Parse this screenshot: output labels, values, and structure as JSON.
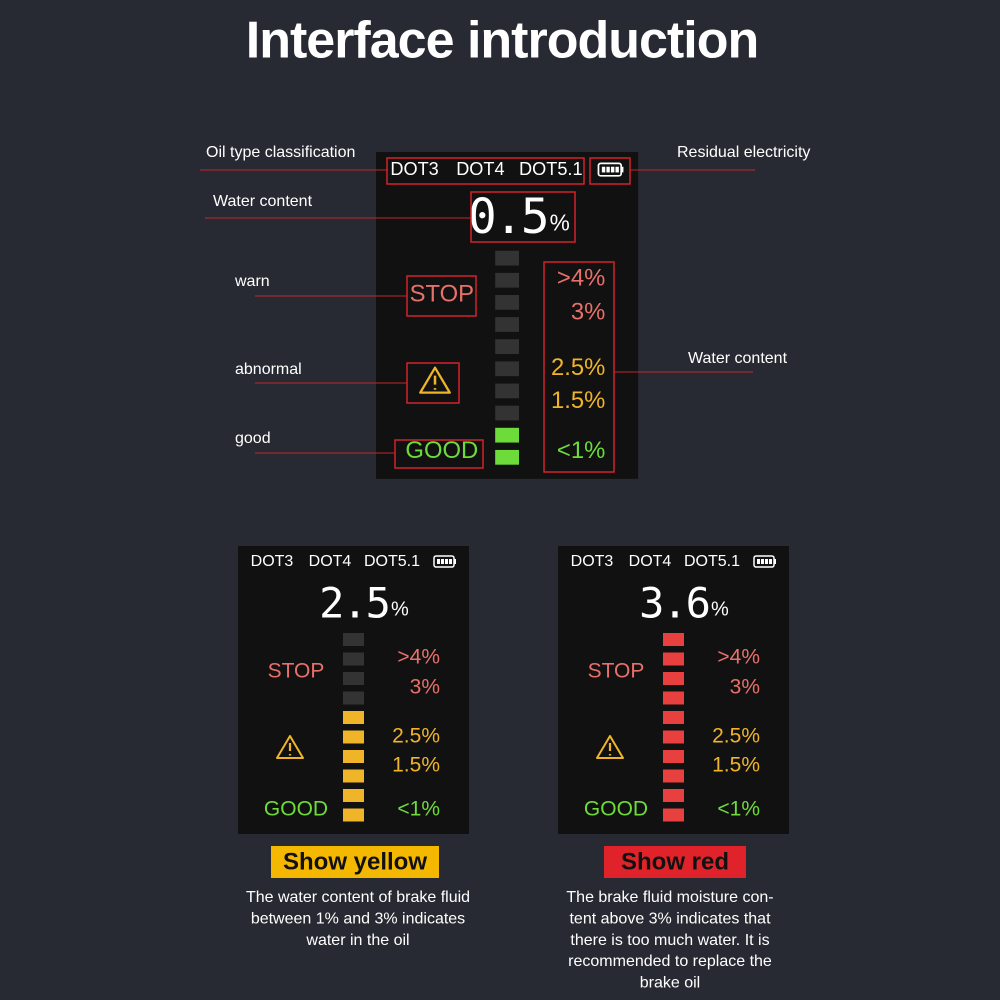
{
  "title": "Interface introduction",
  "callouts": {
    "oil_type": "Oil type classification",
    "battery": "Residual electricity",
    "water_content": "Water content",
    "warn": "warn",
    "abnormal": "abnormal",
    "good": "good",
    "scale": "Water content"
  },
  "main_display": {
    "oil_types": [
      "DOT3",
      "DOT4",
      "DOT5.1"
    ],
    "reading": 0.5,
    "unit": "%",
    "warn": "STOP",
    "good": "GOOD",
    "scale": [
      ">4%",
      "3%",
      "2.5%",
      "1.5%",
      "<1%"
    ]
  },
  "examples": [
    {
      "oil_types": [
        "DOT3",
        "DOT4",
        "DOT5.1"
      ],
      "reading": 2.5,
      "unit": "%",
      "warn": "STOP",
      "good": "GOOD",
      "scale": [
        ">4%",
        "3%",
        "2.5%",
        "1.5%",
        "<1%"
      ],
      "caption": "Show yellow",
      "description": [
        "The water content of brake fluid",
        "between 1% and 3% indicates",
        "water in the oil"
      ]
    },
    {
      "oil_types": [
        "DOT3",
        "DOT4",
        "DOT5.1"
      ],
      "reading": 3.6,
      "unit": "%",
      "warn": "STOP",
      "good": "GOOD",
      "scale": [
        ">4%",
        "3%",
        "2.5%",
        "1.5%",
        "<1%"
      ],
      "caption": "Show red",
      "description": [
        "The brake fluid moisture con-",
        "tent above 3% indicates that",
        "there is too much water. It is",
        "recommended to replace the",
        "brake oil"
      ]
    }
  ]
}
